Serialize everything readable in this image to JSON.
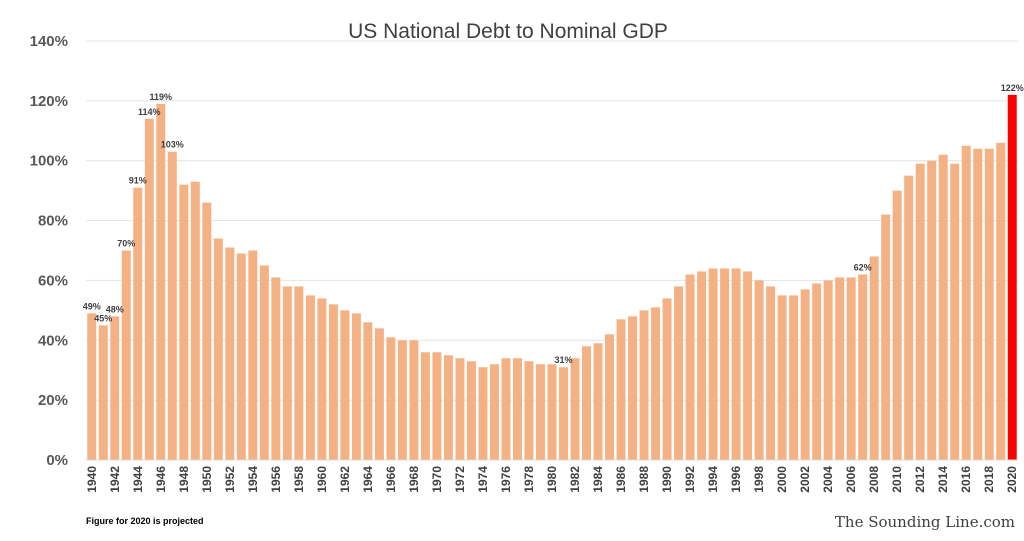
{
  "chart_data": {
    "type": "bar",
    "title": "US National Debt to Nominal GDP",
    "ylim": [
      0,
      140
    ],
    "yticks": [
      "0%",
      "20%",
      "40%",
      "60%",
      "80%",
      "100%",
      "120%",
      "140%"
    ],
    "grid": true,
    "categories": [
      "1940",
      "1941",
      "1942",
      "1943",
      "1944",
      "1945",
      "1946",
      "1947",
      "1948",
      "1949",
      "1950",
      "1951",
      "1952",
      "1953",
      "1954",
      "1955",
      "1956",
      "1957",
      "1958",
      "1959",
      "1960",
      "1961",
      "1962",
      "1963",
      "1964",
      "1965",
      "1966",
      "1967",
      "1968",
      "1969",
      "1970",
      "1971",
      "1972",
      "1973",
      "1974",
      "1975",
      "1976",
      "1977",
      "1978",
      "1979",
      "1980",
      "1981",
      "1982",
      "1983",
      "1984",
      "1985",
      "1986",
      "1987",
      "1988",
      "1989",
      "1990",
      "1991",
      "1992",
      "1993",
      "1994",
      "1995",
      "1996",
      "1997",
      "1998",
      "1999",
      "2000",
      "2001",
      "2002",
      "2003",
      "2004",
      "2005",
      "2006",
      "2007",
      "2008",
      "2009",
      "2010",
      "2011",
      "2012",
      "2013",
      "2014",
      "2015",
      "2016",
      "2017",
      "2018",
      "2019",
      "2020"
    ],
    "xtick_labels": [
      "1940",
      "1942",
      "1944",
      "1946",
      "1948",
      "1950",
      "1952",
      "1954",
      "1956",
      "1958",
      "1960",
      "1962",
      "1964",
      "1966",
      "1968",
      "1970",
      "1972",
      "1974",
      "1976",
      "1978",
      "1980",
      "1982",
      "1984",
      "1986",
      "1988",
      "1990",
      "1992",
      "1994",
      "1996",
      "1998",
      "2000",
      "2002",
      "2004",
      "2006",
      "2008",
      "2010",
      "2012",
      "2014",
      "2016",
      "2018",
      "2020"
    ],
    "values": [
      49,
      45,
      48,
      70,
      91,
      114,
      119,
      103,
      92,
      93,
      86,
      74,
      71,
      69,
      70,
      65,
      61,
      58,
      58,
      55,
      54,
      52,
      50,
      49,
      46,
      44,
      41,
      40,
      40,
      36,
      36,
      35,
      34,
      33,
      31,
      32,
      34,
      34,
      33,
      32,
      32,
      31,
      34,
      38,
      39,
      42,
      47,
      48,
      50,
      51,
      54,
      58,
      62,
      63,
      64,
      64,
      64,
      63,
      60,
      58,
      55,
      55,
      57,
      59,
      60,
      61,
      61,
      62,
      68,
      82,
      90,
      95,
      99,
      100,
      102,
      99,
      105,
      104,
      104,
      106,
      122
    ]
  },
  "data_labels": [
    {
      "year": "1940",
      "text": "49%"
    },
    {
      "year": "1941",
      "text": "45%"
    },
    {
      "year": "1942",
      "text": "48%"
    },
    {
      "year": "1943",
      "text": "70%"
    },
    {
      "year": "1944",
      "text": "91%"
    },
    {
      "year": "1945",
      "text": "114%"
    },
    {
      "year": "1946",
      "text": "119%"
    },
    {
      "year": "1947",
      "text": "103%"
    },
    {
      "year": "1981",
      "text": "31%"
    },
    {
      "year": "2007",
      "text": "62%"
    },
    {
      "year": "2020",
      "text": "122%"
    }
  ],
  "colors": {
    "bar": "#f4b183",
    "highlight_bar": "#ff0000",
    "grid": "#e4e4e4"
  },
  "highlight_year": "2020",
  "footnote": "Figure for 2020  is projected",
  "branding": "The Sounding Line.com"
}
